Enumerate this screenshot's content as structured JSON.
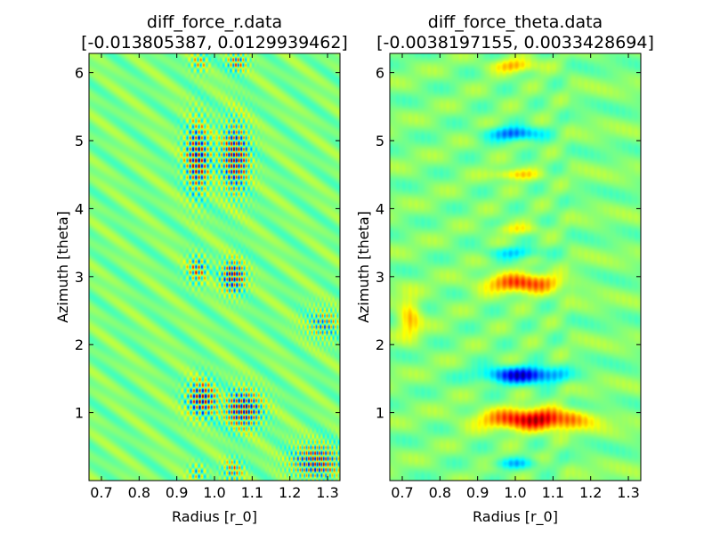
{
  "chart_data": [
    {
      "type": "heatmap",
      "title": "diff_force_r.data",
      "subtitle": "[-0.013805387, 0.0129939462]",
      "xlabel": "Radius [r_0]",
      "ylabel": "Azimuth [theta]",
      "xlim": [
        0.667,
        1.333
      ],
      "ylim": [
        0.0,
        6.283
      ],
      "xticks": [
        0.7,
        0.8,
        0.9,
        1.0,
        1.1,
        1.2,
        1.3
      ],
      "xtick_labels": [
        "0.7",
        "0.8",
        "0.9",
        "1.0",
        "1.1",
        "1.2",
        "1.3"
      ],
      "yticks": [
        1,
        2,
        3,
        4,
        5,
        6
      ],
      "ytick_labels": [
        "1",
        "2",
        "3",
        "4",
        "5",
        "6"
      ],
      "colormap": "jet",
      "value_range": [
        -0.013805387,
        0.0129939462
      ],
      "background_value": 0.0,
      "blobs": [
        {
          "x": 0.955,
          "y": 4.75,
          "rx": 0.035,
          "ry": 0.55,
          "amp": 1.0,
          "freq": 1.6
        },
        {
          "x": 1.055,
          "y": 4.75,
          "rx": 0.04,
          "ry": 0.55,
          "amp": 1.0,
          "freq": 1.9
        },
        {
          "x": 0.955,
          "y": 3.1,
          "rx": 0.03,
          "ry": 0.22,
          "amp": 0.7,
          "freq": 1.6
        },
        {
          "x": 1.05,
          "y": 3.0,
          "rx": 0.035,
          "ry": 0.25,
          "amp": 1.0,
          "freq": 1.9
        },
        {
          "x": 0.965,
          "y": 1.2,
          "rx": 0.04,
          "ry": 0.28,
          "amp": 1.0,
          "freq": 1.6
        },
        {
          "x": 1.075,
          "y": 1.05,
          "rx": 0.055,
          "ry": 0.3,
          "amp": 1.0,
          "freq": 1.9
        },
        {
          "x": 1.27,
          "y": 0.28,
          "rx": 0.07,
          "ry": 0.28,
          "amp": 0.9,
          "freq": 2.2
        },
        {
          "x": 1.29,
          "y": 2.3,
          "rx": 0.05,
          "ry": 0.25,
          "amp": 0.6,
          "freq": 2.2
        },
        {
          "x": 1.06,
          "y": 6.15,
          "rx": 0.03,
          "ry": 0.15,
          "amp": 0.7,
          "freq": 1.9
        },
        {
          "x": 0.96,
          "y": 6.15,
          "rx": 0.025,
          "ry": 0.15,
          "amp": 0.5,
          "freq": 1.6
        },
        {
          "x": 0.955,
          "y": 0.1,
          "rx": 0.025,
          "ry": 0.15,
          "amp": 0.5,
          "freq": 1.6
        },
        {
          "x": 1.05,
          "y": 0.15,
          "rx": 0.03,
          "ry": 0.18,
          "amp": 0.6,
          "freq": 1.9
        }
      ]
    },
    {
      "type": "heatmap",
      "title": "diff_force_theta.data",
      "subtitle": "[-0.0038197155, 0.0033428694]",
      "xlabel": "Radius [r_0]",
      "ylabel": "Azimuth [theta]",
      "xlim": [
        0.667,
        1.333
      ],
      "ylim": [
        0.0,
        6.283
      ],
      "xticks": [
        0.7,
        0.8,
        0.9,
        1.0,
        1.1,
        1.2,
        1.3
      ],
      "xtick_labels": [
        "0.7",
        "0.8",
        "0.9",
        "1.0",
        "1.1",
        "1.2",
        "1.3"
      ],
      "yticks": [
        1,
        2,
        3,
        4,
        5,
        6
      ],
      "ytick_labels": [
        "1",
        "2",
        "3",
        "4",
        "5",
        "6"
      ],
      "colormap": "jet",
      "value_range": [
        -0.0038197155,
        0.0033428694
      ],
      "background_value": 0.0,
      "blobs": [
        {
          "x": 1.0,
          "y": 6.1,
          "rx": 0.06,
          "ry": 0.1,
          "amp": 0.45,
          "freq": 0
        },
        {
          "x": 1.0,
          "y": 5.1,
          "rx": 0.07,
          "ry": 0.1,
          "amp": -0.65,
          "freq": 0
        },
        {
          "x": 1.0,
          "y": 4.5,
          "rx": 0.06,
          "ry": 0.08,
          "amp": 0.4,
          "freq": 0
        },
        {
          "x": 1.0,
          "y": 3.7,
          "rx": 0.06,
          "ry": 0.08,
          "amp": 0.25,
          "freq": 0
        },
        {
          "x": 1.0,
          "y": 3.35,
          "rx": 0.07,
          "ry": 0.09,
          "amp": -0.35,
          "freq": 0
        },
        {
          "x": 1.02,
          "y": 2.9,
          "rx": 0.1,
          "ry": 0.14,
          "amp": 0.75,
          "freq": 0
        },
        {
          "x": 1.02,
          "y": 1.55,
          "rx": 0.1,
          "ry": 0.12,
          "amp": -0.95,
          "freq": 0
        },
        {
          "x": 1.05,
          "y": 0.9,
          "rx": 0.13,
          "ry": 0.15,
          "amp": 1.0,
          "freq": 0
        },
        {
          "x": 1.0,
          "y": 0.25,
          "rx": 0.06,
          "ry": 0.08,
          "amp": -0.35,
          "freq": 0
        },
        {
          "x": 0.72,
          "y": 2.4,
          "rx": 0.03,
          "ry": 0.3,
          "amp": 0.45,
          "freq": 0
        }
      ]
    }
  ]
}
